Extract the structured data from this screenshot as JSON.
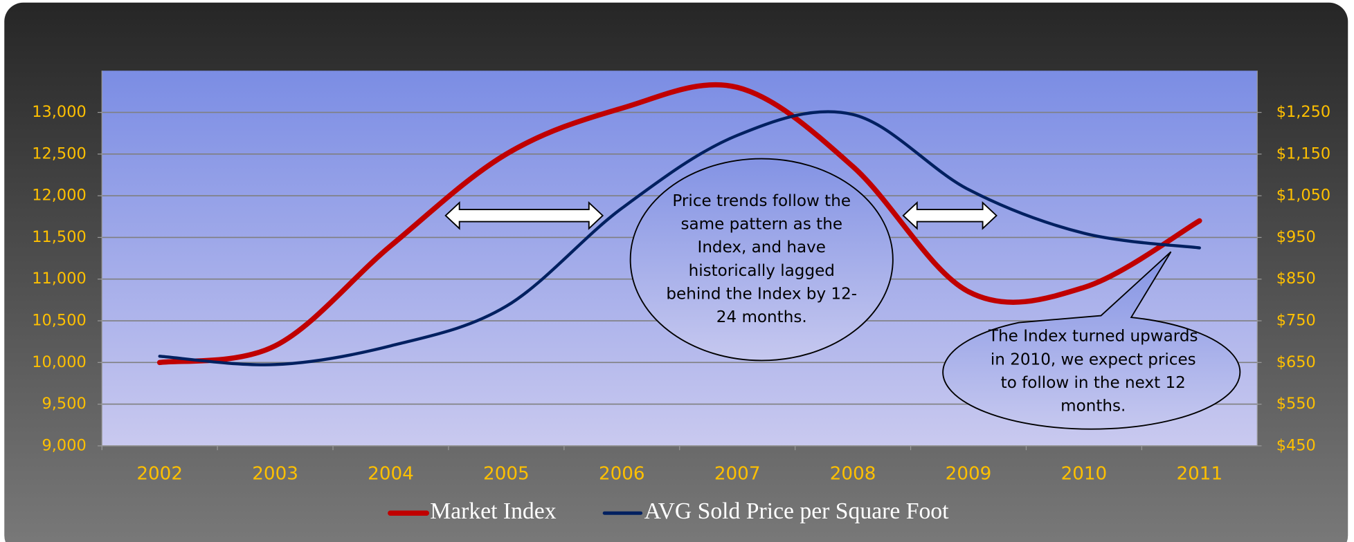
{
  "chart_data": {
    "type": "line",
    "categories": [
      "2002",
      "2003",
      "2004",
      "2005",
      "2006",
      "2007",
      "2008",
      "2009",
      "2010",
      "2011"
    ],
    "series": [
      {
        "name": "Market Index",
        "color": "#c00000",
        "values": [
          10000,
          10200,
          11400,
          12500,
          13050,
          13300,
          12350,
          10850,
          10900,
          11700
        ]
      },
      {
        "name": "AVG Sold Price per Square Foot",
        "color": "#002060",
        "axis": "y2",
        "values": [
          665,
          645,
          690,
          785,
          1020,
          1195,
          1245,
          1065,
          960,
          925
        ]
      }
    ],
    "ylim": [
      9000,
      13500
    ],
    "yticks": [
      {
        "value": 9000,
        "label": "9,000"
      },
      {
        "value": 9500,
        "label": "9,500"
      },
      {
        "value": 10000,
        "label": "10,000"
      },
      {
        "value": 10500,
        "label": "10,500"
      },
      {
        "value": 11000,
        "label": "11,000"
      },
      {
        "value": 11500,
        "label": "11,500"
      },
      {
        "value": 12000,
        "label": "12,000"
      },
      {
        "value": 12500,
        "label": "12,500"
      },
      {
        "value": 13000,
        "label": "13,000"
      }
    ],
    "y2lim": [
      450,
      1350
    ],
    "y2ticks": [
      {
        "value": 450,
        "label": "$450"
      },
      {
        "value": 550,
        "label": "$550"
      },
      {
        "value": 650,
        "label": "$650"
      },
      {
        "value": 750,
        "label": "$750"
      },
      {
        "value": 850,
        "label": "$850"
      },
      {
        "value": 950,
        "label": "$950"
      },
      {
        "value": 1050,
        "label": "$1,050"
      },
      {
        "value": 1150,
        "label": "$1,150"
      },
      {
        "value": 1250,
        "label": "$1,250"
      }
    ],
    "grid": true,
    "legend": "bottom",
    "annotations": [
      {
        "lines": [
          "Price trends follow the",
          "same pattern as the",
          "Index, and have",
          "historically lagged",
          "behind the Index by 12-",
          "24 months."
        ]
      },
      {
        "lines": [
          "The Index turned upwards",
          "in 2010, we expect prices",
          "to follow in the next 12",
          "months."
        ]
      }
    ]
  }
}
